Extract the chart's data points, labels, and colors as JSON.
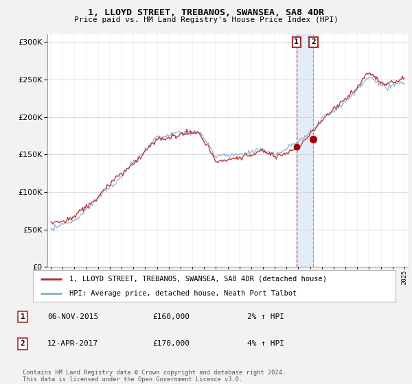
{
  "title": "1, LLOYD STREET, TREBANOS, SWANSEA, SA8 4DR",
  "subtitle": "Price paid vs. HM Land Registry's House Price Index (HPI)",
  "legend_line1": "1, LLOYD STREET, TREBANOS, SWANSEA, SA8 4DR (detached house)",
  "legend_line2": "HPI: Average price, detached house, Neath Port Talbot",
  "transaction1_date": "06-NOV-2015",
  "transaction1_price": "£160,000",
  "transaction1_hpi": "2% ↑ HPI",
  "transaction2_date": "12-APR-2017",
  "transaction2_price": "£170,000",
  "transaction2_hpi": "4% ↑ HPI",
  "footnote": "Contains HM Land Registry data © Crown copyright and database right 2024.\nThis data is licensed under the Open Government Licence v3.0.",
  "sale1_year": 2015.85,
  "sale1_value": 160000,
  "sale2_year": 2017.28,
  "sale2_value": 170000,
  "hpi_color": "#7ab0d4",
  "price_color": "#cc2222",
  "sale_marker_color": "#aa0000",
  "background_color": "#f2f2f2",
  "plot_bg_color": "#ffffff",
  "ylim": [
    0,
    310000
  ],
  "xlim_start": 1994.7,
  "xlim_end": 2025.3
}
